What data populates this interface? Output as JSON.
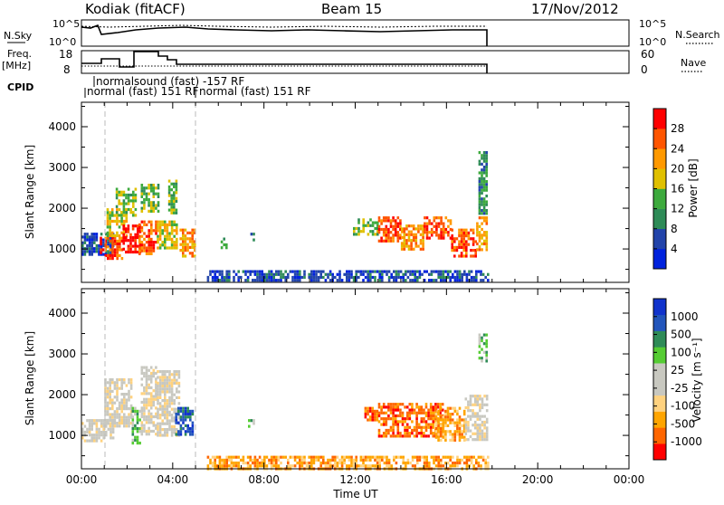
{
  "header": {
    "title": "Kodiak (fitACF)",
    "beam": "Beam 15",
    "date": "17/Nov/2012"
  },
  "meta_panels": {
    "nsky_label": "N.Sky",
    "nsky_ticks": [
      "10^5",
      "10^0"
    ],
    "nsearch_label": "N.Search",
    "nsearch_ticks": [
      "10^5",
      "10^0"
    ],
    "freq_label": "Freq.",
    "freq_unit": "[MHz]",
    "freq_ticks": [
      "18",
      "8"
    ],
    "nave_label": "Nave",
    "nave_ticks": [
      "60",
      "0"
    ],
    "cpid_label": "CPID",
    "cpid_line1": "normalsound (fast) -157 RF",
    "cpid_line2a": "normal (fast) 151 RF",
    "cpid_line2b": "normal (fast) 151 RF"
  },
  "colors": {
    "power": [
      "#0022dd",
      "#2244aa",
      "#2e8b57",
      "#3daa3d",
      "#e0c000",
      "#ff9900",
      "#ff5500",
      "#ff0000"
    ],
    "velocity": [
      "#ff0000",
      "#ff6600",
      "#ffa500",
      "#ffd27f",
      "#c8c8c0",
      "#c8c8c0",
      "#55cc33",
      "#2e8b57",
      "#2255bb",
      "#1133cc"
    ]
  },
  "chart_data": [
    {
      "type": "heatmap",
      "name": "power",
      "xlabel": "",
      "ylabel": "Slant Range [km]",
      "xlim": [
        0,
        24
      ],
      "ylim": [
        180,
        4600
      ],
      "yticks": [
        "1000",
        "2000",
        "3000",
        "4000"
      ],
      "colorbar_label": "Power [dB]",
      "colorbar_ticks": [
        "4",
        "8",
        "12",
        "16",
        "20",
        "24",
        "28"
      ],
      "regions": [
        {
          "t0": 0.0,
          "t1": 1.4,
          "r0": 850,
          "r1": 1400,
          "level": 1
        },
        {
          "t0": 0.8,
          "t1": 1.8,
          "r0": 800,
          "r1": 1300,
          "level": 6
        },
        {
          "t0": 1.1,
          "t1": 2.0,
          "r0": 1300,
          "r1": 2000,
          "level": 4
        },
        {
          "t0": 1.8,
          "t1": 2.6,
          "r0": 900,
          "r1": 1600,
          "level": 7
        },
        {
          "t0": 1.5,
          "t1": 2.4,
          "r0": 1800,
          "r1": 2500,
          "level": 3
        },
        {
          "t0": 2.5,
          "t1": 3.3,
          "r0": 900,
          "r1": 1700,
          "level": 6
        },
        {
          "t0": 2.6,
          "t1": 3.4,
          "r0": 1900,
          "r1": 2600,
          "level": 3
        },
        {
          "t0": 3.3,
          "t1": 4.2,
          "r0": 1000,
          "r1": 1700,
          "level": 4
        },
        {
          "t0": 3.8,
          "t1": 4.2,
          "r0": 1900,
          "r1": 2700,
          "level": 3
        },
        {
          "t0": 4.3,
          "t1": 5.0,
          "r0": 800,
          "r1": 1500,
          "level": 5
        },
        {
          "t0": 6.1,
          "t1": 6.4,
          "r0": 1050,
          "r1": 1350,
          "level": 3
        },
        {
          "t0": 7.3,
          "t1": 7.6,
          "r0": 1250,
          "r1": 1400,
          "level": 2
        },
        {
          "t0": 11.9,
          "t1": 13.0,
          "r0": 1350,
          "r1": 1750,
          "level": 3
        },
        {
          "t0": 13.0,
          "t1": 14.0,
          "r0": 1200,
          "r1": 1800,
          "level": 6
        },
        {
          "t0": 14.0,
          "t1": 15.0,
          "r0": 1000,
          "r1": 1600,
          "level": 5
        },
        {
          "t0": 15.0,
          "t1": 16.2,
          "r0": 1300,
          "r1": 1800,
          "level": 6
        },
        {
          "t0": 16.2,
          "t1": 17.3,
          "r0": 850,
          "r1": 1500,
          "level": 6
        },
        {
          "t0": 17.3,
          "t1": 17.8,
          "r0": 1000,
          "r1": 1800,
          "level": 5
        },
        {
          "t0": 17.4,
          "t1": 17.8,
          "r0": 1900,
          "r1": 3400,
          "level": 2
        },
        {
          "t0": 5.5,
          "t1": 17.8,
          "r0": 200,
          "r1": 480,
          "level": 1
        }
      ]
    },
    {
      "type": "heatmap",
      "name": "velocity",
      "xlabel": "Time UT",
      "ylabel": "Slant Range [km]",
      "xlim": [
        0,
        24
      ],
      "ylim": [
        180,
        4600
      ],
      "xticks": [
        "00:00",
        "04:00",
        "08:00",
        "12:00",
        "16:00",
        "20:00",
        "00:00"
      ],
      "yticks": [
        "1000",
        "2000",
        "3000",
        "4000"
      ],
      "colorbar_label": "Velocity [m s⁻¹]",
      "colorbar_ticks": [
        "1000",
        "500",
        "100",
        "25",
        "-25",
        "-100",
        "-500",
        "-1000"
      ],
      "regions": [
        {
          "t0": 0.0,
          "t1": 1.4,
          "r0": 850,
          "r1": 1400,
          "level": 4
        },
        {
          "t0": 1.0,
          "t1": 2.2,
          "r0": 1200,
          "r1": 2400,
          "level": 4
        },
        {
          "t0": 2.2,
          "t1": 2.6,
          "r0": 800,
          "r1": 1700,
          "level": 6
        },
        {
          "t0": 2.6,
          "t1": 3.3,
          "r0": 1000,
          "r1": 2700,
          "level": 4
        },
        {
          "t0": 3.3,
          "t1": 4.3,
          "r0": 1000,
          "r1": 2600,
          "level": 4
        },
        {
          "t0": 4.1,
          "t1": 4.9,
          "r0": 1000,
          "r1": 1700,
          "level": 8
        },
        {
          "t0": 7.3,
          "t1": 7.6,
          "r0": 1200,
          "r1": 1400,
          "level": 6
        },
        {
          "t0": 12.4,
          "t1": 13.0,
          "r0": 1400,
          "r1": 1700,
          "level": 1
        },
        {
          "t0": 13.0,
          "t1": 15.8,
          "r0": 1000,
          "r1": 1800,
          "level": 1
        },
        {
          "t0": 15.5,
          "t1": 16.8,
          "r0": 900,
          "r1": 1700,
          "level": 2
        },
        {
          "t0": 16.8,
          "t1": 17.8,
          "r0": 900,
          "r1": 2000,
          "level": 4
        },
        {
          "t0": 17.4,
          "t1": 17.8,
          "r0": 2800,
          "r1": 3500,
          "level": 6
        },
        {
          "t0": 5.5,
          "t1": 17.8,
          "r0": 200,
          "r1": 500,
          "level": 2
        }
      ]
    }
  ]
}
